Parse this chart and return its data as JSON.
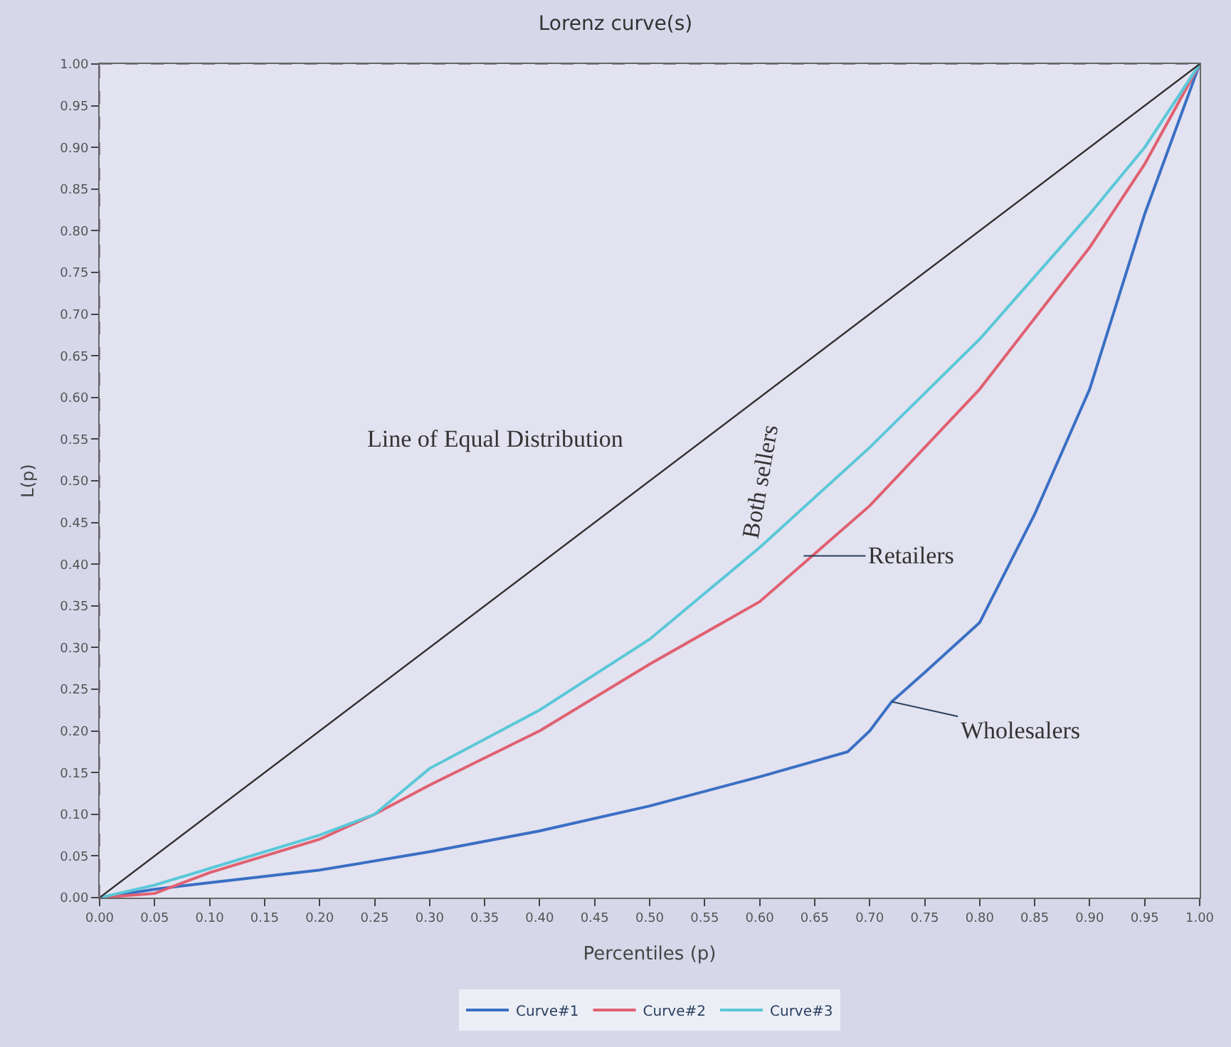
{
  "chart_data": {
    "type": "line",
    "title": "Lorenz curve(s)",
    "xlabel": "Percentiles (p)",
    "ylabel": "L(p)",
    "xlim": [
      0,
      1
    ],
    "ylim": [
      0,
      1
    ],
    "xticks": [
      {
        "value": 0,
        "label": "0.00"
      },
      {
        "value": 0.05,
        "label": "0.05"
      },
      {
        "value": 0.1,
        "label": "0.10"
      },
      {
        "value": 0.15,
        "label": "0.15"
      },
      {
        "value": 0.2,
        "label": "0.20"
      },
      {
        "value": 0.25,
        "label": "0.25"
      },
      {
        "value": 0.3,
        "label": "0.30"
      },
      {
        "value": 0.35,
        "label": "0.35"
      },
      {
        "value": 0.4,
        "label": "0.40"
      },
      {
        "value": 0.45,
        "label": "0.45"
      },
      {
        "value": 0.5,
        "label": "0.50"
      },
      {
        "value": 0.55,
        "label": "0.55"
      },
      {
        "value": 0.6,
        "label": "0.60"
      },
      {
        "value": 0.65,
        "label": "0.65"
      },
      {
        "value": 0.7,
        "label": "0.70"
      },
      {
        "value": 0.75,
        "label": "0.75"
      },
      {
        "value": 0.8,
        "label": "0.80"
      },
      {
        "value": 0.85,
        "label": "0.85"
      },
      {
        "value": 0.9,
        "label": "0.90"
      },
      {
        "value": 0.95,
        "label": "0.95"
      },
      {
        "value": 1,
        "label": "1.00"
      }
    ],
    "yticks": [
      {
        "value": 0,
        "label": "0.00"
      },
      {
        "value": 0.05,
        "label": "0.05"
      },
      {
        "value": 0.1,
        "label": "0.10"
      },
      {
        "value": 0.15,
        "label": "0.15"
      },
      {
        "value": 0.2,
        "label": "0.20"
      },
      {
        "value": 0.25,
        "label": "0.25"
      },
      {
        "value": 0.3,
        "label": "0.30"
      },
      {
        "value": 0.35,
        "label": "0.35"
      },
      {
        "value": 0.4,
        "label": "0.40"
      },
      {
        "value": 0.45,
        "label": "0.45"
      },
      {
        "value": 0.5,
        "label": "0.50"
      },
      {
        "value": 0.55,
        "label": "0.55"
      },
      {
        "value": 0.6,
        "label": "0.60"
      },
      {
        "value": 0.65,
        "label": "0.65"
      },
      {
        "value": 0.7,
        "label": "0.70"
      },
      {
        "value": 0.75,
        "label": "0.75"
      },
      {
        "value": 0.8,
        "label": "0.80"
      },
      {
        "value": 0.85,
        "label": "0.85"
      },
      {
        "value": 0.9,
        "label": "0.90"
      },
      {
        "value": 0.95,
        "label": "0.95"
      },
      {
        "value": 1,
        "label": "1.00"
      }
    ],
    "grid": false,
    "legend": "bottom",
    "marker": "none",
    "line_style": "solid",
    "series": [
      {
        "name": "Curve#1",
        "color": "#3a6fc4",
        "x": [
          0,
          0.05,
          0.1,
          0.2,
          0.3,
          0.4,
          0.5,
          0.6,
          0.68,
          0.7,
          0.72,
          0.75,
          0.8,
          0.85,
          0.9,
          0.95,
          1
        ],
        "values": [
          0,
          0.01,
          0.018,
          0.033,
          0.055,
          0.08,
          0.11,
          0.145,
          0.175,
          0.2,
          0.235,
          0.27,
          0.33,
          0.46,
          0.61,
          0.82,
          1
        ]
      },
      {
        "name": "Curve#2",
        "color": "#e06070",
        "x": [
          0,
          0.05,
          0.1,
          0.2,
          0.25,
          0.3,
          0.4,
          0.5,
          0.6,
          0.7,
          0.8,
          0.9,
          0.95,
          1
        ],
        "values": [
          0,
          0.005,
          0.03,
          0.07,
          0.1,
          0.135,
          0.2,
          0.28,
          0.355,
          0.47,
          0.61,
          0.78,
          0.88,
          1
        ]
      },
      {
        "name": "Curve#3",
        "color": "#5ac8d8",
        "x": [
          0,
          0.05,
          0.1,
          0.2,
          0.25,
          0.3,
          0.4,
          0.5,
          0.6,
          0.7,
          0.8,
          0.9,
          0.95,
          1
        ],
        "values": [
          0,
          0.015,
          0.035,
          0.075,
          0.1,
          0.155,
          0.225,
          0.31,
          0.42,
          0.54,
          0.67,
          0.82,
          0.9,
          1
        ]
      },
      {
        "color": "#303030",
        "x": [
          0,
          1
        ],
        "values": [
          0,
          1
        ]
      }
    ],
    "ref_lines": [
      {
        "axis": "x",
        "value": 0,
        "color": "#9080a0",
        "line_style": "dashed"
      },
      {
        "axis": "y",
        "value": 1,
        "color": "#9080a0",
        "line_style": "dashed"
      }
    ],
    "annotations": [
      "Line of Equal Distribution",
      "Both sellers",
      {
        "text": "Retailers",
        "x": 0.64,
        "y": 0.41
      },
      {
        "text": "Wholesalers",
        "x": 0.72,
        "y": 0.235
      }
    ]
  }
}
